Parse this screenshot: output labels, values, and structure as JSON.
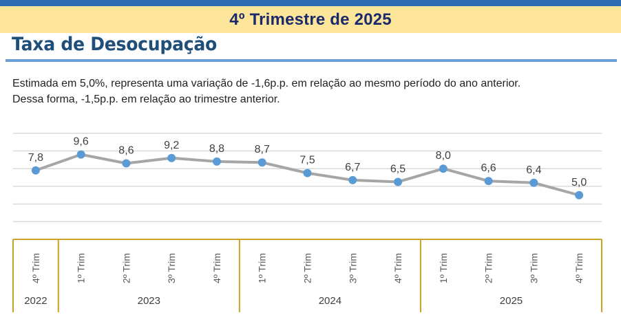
{
  "header": {
    "title": "4º Trimestre de 2025"
  },
  "section": {
    "title": "Taxa de Desocupação",
    "description_line1": "Estimada em 5,0%, representa uma variação de -1,6p.p. em relação ao mesmo período do ano anterior.",
    "description_line2": "Dessa forma, -1,5p.p. em relação ao trimestre anterior."
  },
  "colors": {
    "top_bar": "#2e6fb3",
    "band": "#fde59a",
    "band_text": "#1a2a6c",
    "section_title": "#1f4e79",
    "underline": "#6a9ed4",
    "line": "#a6a6a6",
    "marker": "#5b9bd5",
    "axis_border": "#c9a227"
  },
  "chart_data": {
    "type": "line",
    "title": "Taxa de Desocupação",
    "xlabel": "",
    "ylabel": "",
    "ylim": [
      0,
      12
    ],
    "grid": true,
    "legend": null,
    "categories": [
      "4º Trim",
      "1º Trim",
      "2º Trim",
      "3º Trim",
      "4º Trim",
      "1º Trim",
      "2º Trim",
      "3º Trim",
      "4º Trim",
      "1º Trim",
      "2º Trim",
      "3º Trim",
      "4º Trim"
    ],
    "category_years": [
      "2022",
      "2023",
      "2023",
      "2023",
      "2023",
      "2024",
      "2024",
      "2024",
      "2024",
      "2025",
      "2025",
      "2025",
      "2025"
    ],
    "year_groups": [
      {
        "label": "2022",
        "count": 1
      },
      {
        "label": "2023",
        "count": 4
      },
      {
        "label": "2024",
        "count": 4
      },
      {
        "label": "2025",
        "count": 4
      }
    ],
    "values": [
      7.8,
      9.6,
      8.6,
      9.2,
      8.8,
      8.7,
      7.5,
      6.7,
      6.5,
      8.0,
      6.6,
      6.4,
      5.0
    ],
    "data_labels": [
      "7,8",
      "9,6",
      "8,6",
      "9,2",
      "8,8",
      "8,7",
      "7,5",
      "6,7",
      "6,5",
      "8,0",
      "6,6",
      "6,4",
      "5,0"
    ]
  }
}
